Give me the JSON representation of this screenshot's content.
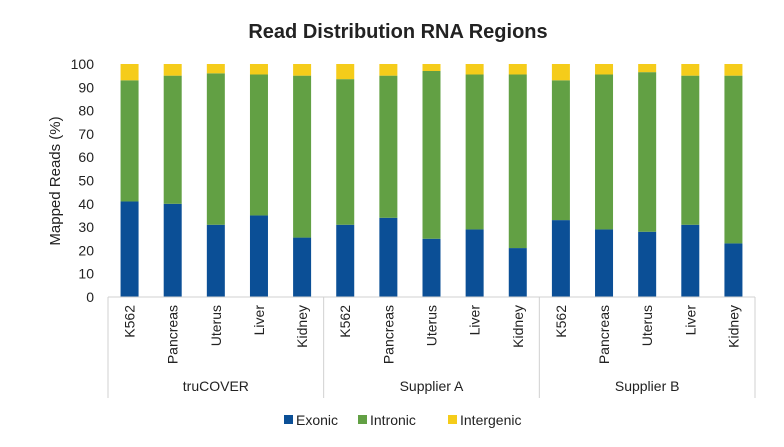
{
  "chart_data": {
    "type": "bar",
    "stacked": true,
    "title": "Read Distribution RNA Regions",
    "ylabel": "Mapped Reads (%)",
    "xlabel": "",
    "ylim": [
      0,
      100
    ],
    "yticks": [
      0,
      10,
      20,
      30,
      40,
      50,
      60,
      70,
      80,
      90,
      100
    ],
    "groups": [
      "truCOVER",
      "Supplier A",
      "Supplier B"
    ],
    "categories": [
      "K562",
      "Pancreas",
      "Uterus",
      "Liver",
      "Kidney",
      "K562",
      "Pancreas",
      "Uterus",
      "Liver",
      "Kidney",
      "K562",
      "Pancreas",
      "Uterus",
      "Liver",
      "Kidney"
    ],
    "series": [
      {
        "name": "Exonic",
        "color": "#0b4f96",
        "values": [
          41,
          40,
          31,
          35,
          25.5,
          31,
          34,
          25,
          29,
          21,
          33,
          29,
          28,
          31,
          23
        ]
      },
      {
        "name": "Intronic",
        "color": "#62a044",
        "values": [
          52,
          55,
          65,
          60.5,
          69.5,
          62.5,
          61,
          72,
          66.5,
          74.5,
          60,
          66.5,
          68.5,
          64,
          72
        ]
      },
      {
        "name": "Intergenic",
        "color": "#f5cc1a",
        "values": [
          7,
          5,
          4,
          4.5,
          5,
          6.5,
          5,
          3,
          4.5,
          4.5,
          7,
          4.5,
          3.5,
          5,
          5
        ]
      }
    ],
    "legend": "bottom",
    "grid": false
  }
}
